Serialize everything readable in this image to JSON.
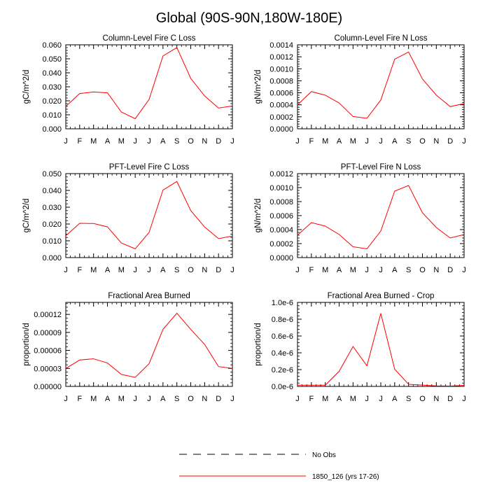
{
  "page": {
    "title": "Global (90S-90N,180W-180E)"
  },
  "legend": {
    "items": [
      {
        "label": "No Obs",
        "style": "dashed",
        "color": "#000000"
      },
      {
        "label": "1850_126 (yrs 17-26)",
        "style": "solid",
        "color": "#ff0000"
      }
    ]
  },
  "colors": {
    "series": "#ff0000",
    "axis": "#000000"
  },
  "chart_data": [
    {
      "type": "line",
      "title": "Column-Level Fire C Loss",
      "ylabel": "gC/m^2/d",
      "xlabel": "",
      "categories": [
        "J",
        "F",
        "M",
        "A",
        "M",
        "J",
        "J",
        "A",
        "S",
        "O",
        "N",
        "D",
        "J"
      ],
      "ylim": [
        0,
        0.06
      ],
      "yticks": [
        0,
        0.01,
        0.02,
        0.03,
        0.04,
        0.05,
        0.06
      ],
      "ytick_labels": [
        "0.000",
        "0.010",
        "0.020",
        "0.030",
        "0.040",
        "0.050",
        "0.060"
      ],
      "series": [
        {
          "name": "1850_126 (yrs 17-26)",
          "values": [
            0.016,
            0.0252,
            0.0263,
            0.0257,
            0.012,
            0.0072,
            0.021,
            0.052,
            0.058,
            0.036,
            0.0235,
            0.0148,
            0.0163
          ]
        }
      ]
    },
    {
      "type": "line",
      "title": "Column-Level Fire N Loss",
      "ylabel": "gN/m^2/d",
      "xlabel": "",
      "categories": [
        "J",
        "F",
        "M",
        "A",
        "M",
        "J",
        "J",
        "A",
        "S",
        "O",
        "N",
        "D",
        "J"
      ],
      "ylim": [
        0,
        0.0014
      ],
      "yticks": [
        0,
        0.0002,
        0.0004,
        0.0006,
        0.0008,
        0.001,
        0.0012,
        0.0014
      ],
      "ytick_labels": [
        "0.0000",
        "0.0002",
        "0.0004",
        "0.0006",
        "0.0008",
        "0.0010",
        "0.0012",
        "0.0014"
      ],
      "series": [
        {
          "name": "1850_126 (yrs 17-26)",
          "values": [
            0.0004,
            0.00062,
            0.00056,
            0.00043,
            0.000205,
            0.000175,
            0.00048,
            0.00116,
            0.00128,
            0.00083,
            0.00056,
            0.00037,
            0.00042
          ]
        }
      ]
    },
    {
      "type": "line",
      "title": "PFT-Level Fire C Loss",
      "ylabel": "gC/m^2/d",
      "xlabel": "",
      "categories": [
        "J",
        "F",
        "M",
        "A",
        "M",
        "J",
        "J",
        "A",
        "S",
        "O",
        "N",
        "D",
        "J"
      ],
      "ylim": [
        0,
        0.05
      ],
      "yticks": [
        0,
        0.01,
        0.02,
        0.03,
        0.04,
        0.05
      ],
      "ytick_labels": [
        "0.000",
        "0.010",
        "0.020",
        "0.030",
        "0.040",
        "0.050"
      ],
      "series": [
        {
          "name": "1850_126 (yrs 17-26)",
          "values": [
            0.013,
            0.0204,
            0.0203,
            0.0183,
            0.0087,
            0.0052,
            0.015,
            0.0402,
            0.0453,
            0.028,
            0.0182,
            0.0113,
            0.0128
          ]
        }
      ]
    },
    {
      "type": "line",
      "title": "PFT-Level Fire N Loss",
      "ylabel": "gN/m^2/d",
      "xlabel": "",
      "categories": [
        "J",
        "F",
        "M",
        "A",
        "M",
        "J",
        "J",
        "A",
        "S",
        "O",
        "N",
        "D",
        "J"
      ],
      "ylim": [
        0,
        0.0012
      ],
      "yticks": [
        0,
        0.0002,
        0.0004,
        0.0006,
        0.0008,
        0.001,
        0.0012
      ],
      "ytick_labels": [
        "0.0000",
        "0.0002",
        "0.0004",
        "0.0006",
        "0.0008",
        "0.0010",
        "0.0012"
      ],
      "series": [
        {
          "name": "1850_126 (yrs 17-26)",
          "values": [
            0.00032,
            0.0005,
            0.00045,
            0.00033,
            0.000155,
            0.000125,
            0.00038,
            0.00095,
            0.00103,
            0.00064,
            0.00043,
            0.00028,
            0.00033
          ]
        }
      ]
    },
    {
      "type": "line",
      "title": "Fractional Area Burned",
      "ylabel": "proportion/d",
      "xlabel": "",
      "categories": [
        "J",
        "F",
        "M",
        "A",
        "M",
        "J",
        "J",
        "A",
        "S",
        "O",
        "N",
        "D",
        "J"
      ],
      "ylim": [
        0,
        0.00014
      ],
      "yticks": [
        0,
        3e-05,
        6e-05,
        9e-05,
        0.00012
      ],
      "ytick_labels": [
        "0.00000",
        "0.00003",
        "0.00006",
        "0.00009",
        "0.00012"
      ],
      "series": [
        {
          "name": "1850_126 (yrs 17-26)",
          "values": [
            3e-05,
            4.4e-05,
            4.6e-05,
            3.9e-05,
            2e-05,
            1.5e-05,
            3.8e-05,
            9.5e-05,
            0.000122,
            9.5e-05,
            7e-05,
            3.3e-05,
            3e-05
          ]
        }
      ]
    },
    {
      "type": "line",
      "title": "Fractional Area Burned - Crop",
      "ylabel": "proportion/d",
      "xlabel": "",
      "categories": [
        "J",
        "F",
        "M",
        "A",
        "M",
        "J",
        "J",
        "A",
        "S",
        "O",
        "N",
        "D",
        "J"
      ],
      "ylim": [
        0,
        1e-06
      ],
      "yticks": [
        0,
        2e-07,
        4e-07,
        6e-07,
        8e-07,
        1e-06
      ],
      "ytick_labels": [
        "0.0e-6",
        "0.2e-6",
        "0.4e-6",
        "0.6e-6",
        "0.8e-6",
        "1.0e-6"
      ],
      "series": [
        {
          "name": "1850_126 (yrs 17-26)",
          "values": [
            1.5e-08,
            1.5e-08,
            1.5e-08,
            1.8e-07,
            4.75e-07,
            2.45e-07,
            8.7e-07,
            2.05e-07,
            2.5e-08,
            1.6e-08,
            6e-09,
            4e-09,
            1.2e-08
          ]
        }
      ]
    }
  ]
}
